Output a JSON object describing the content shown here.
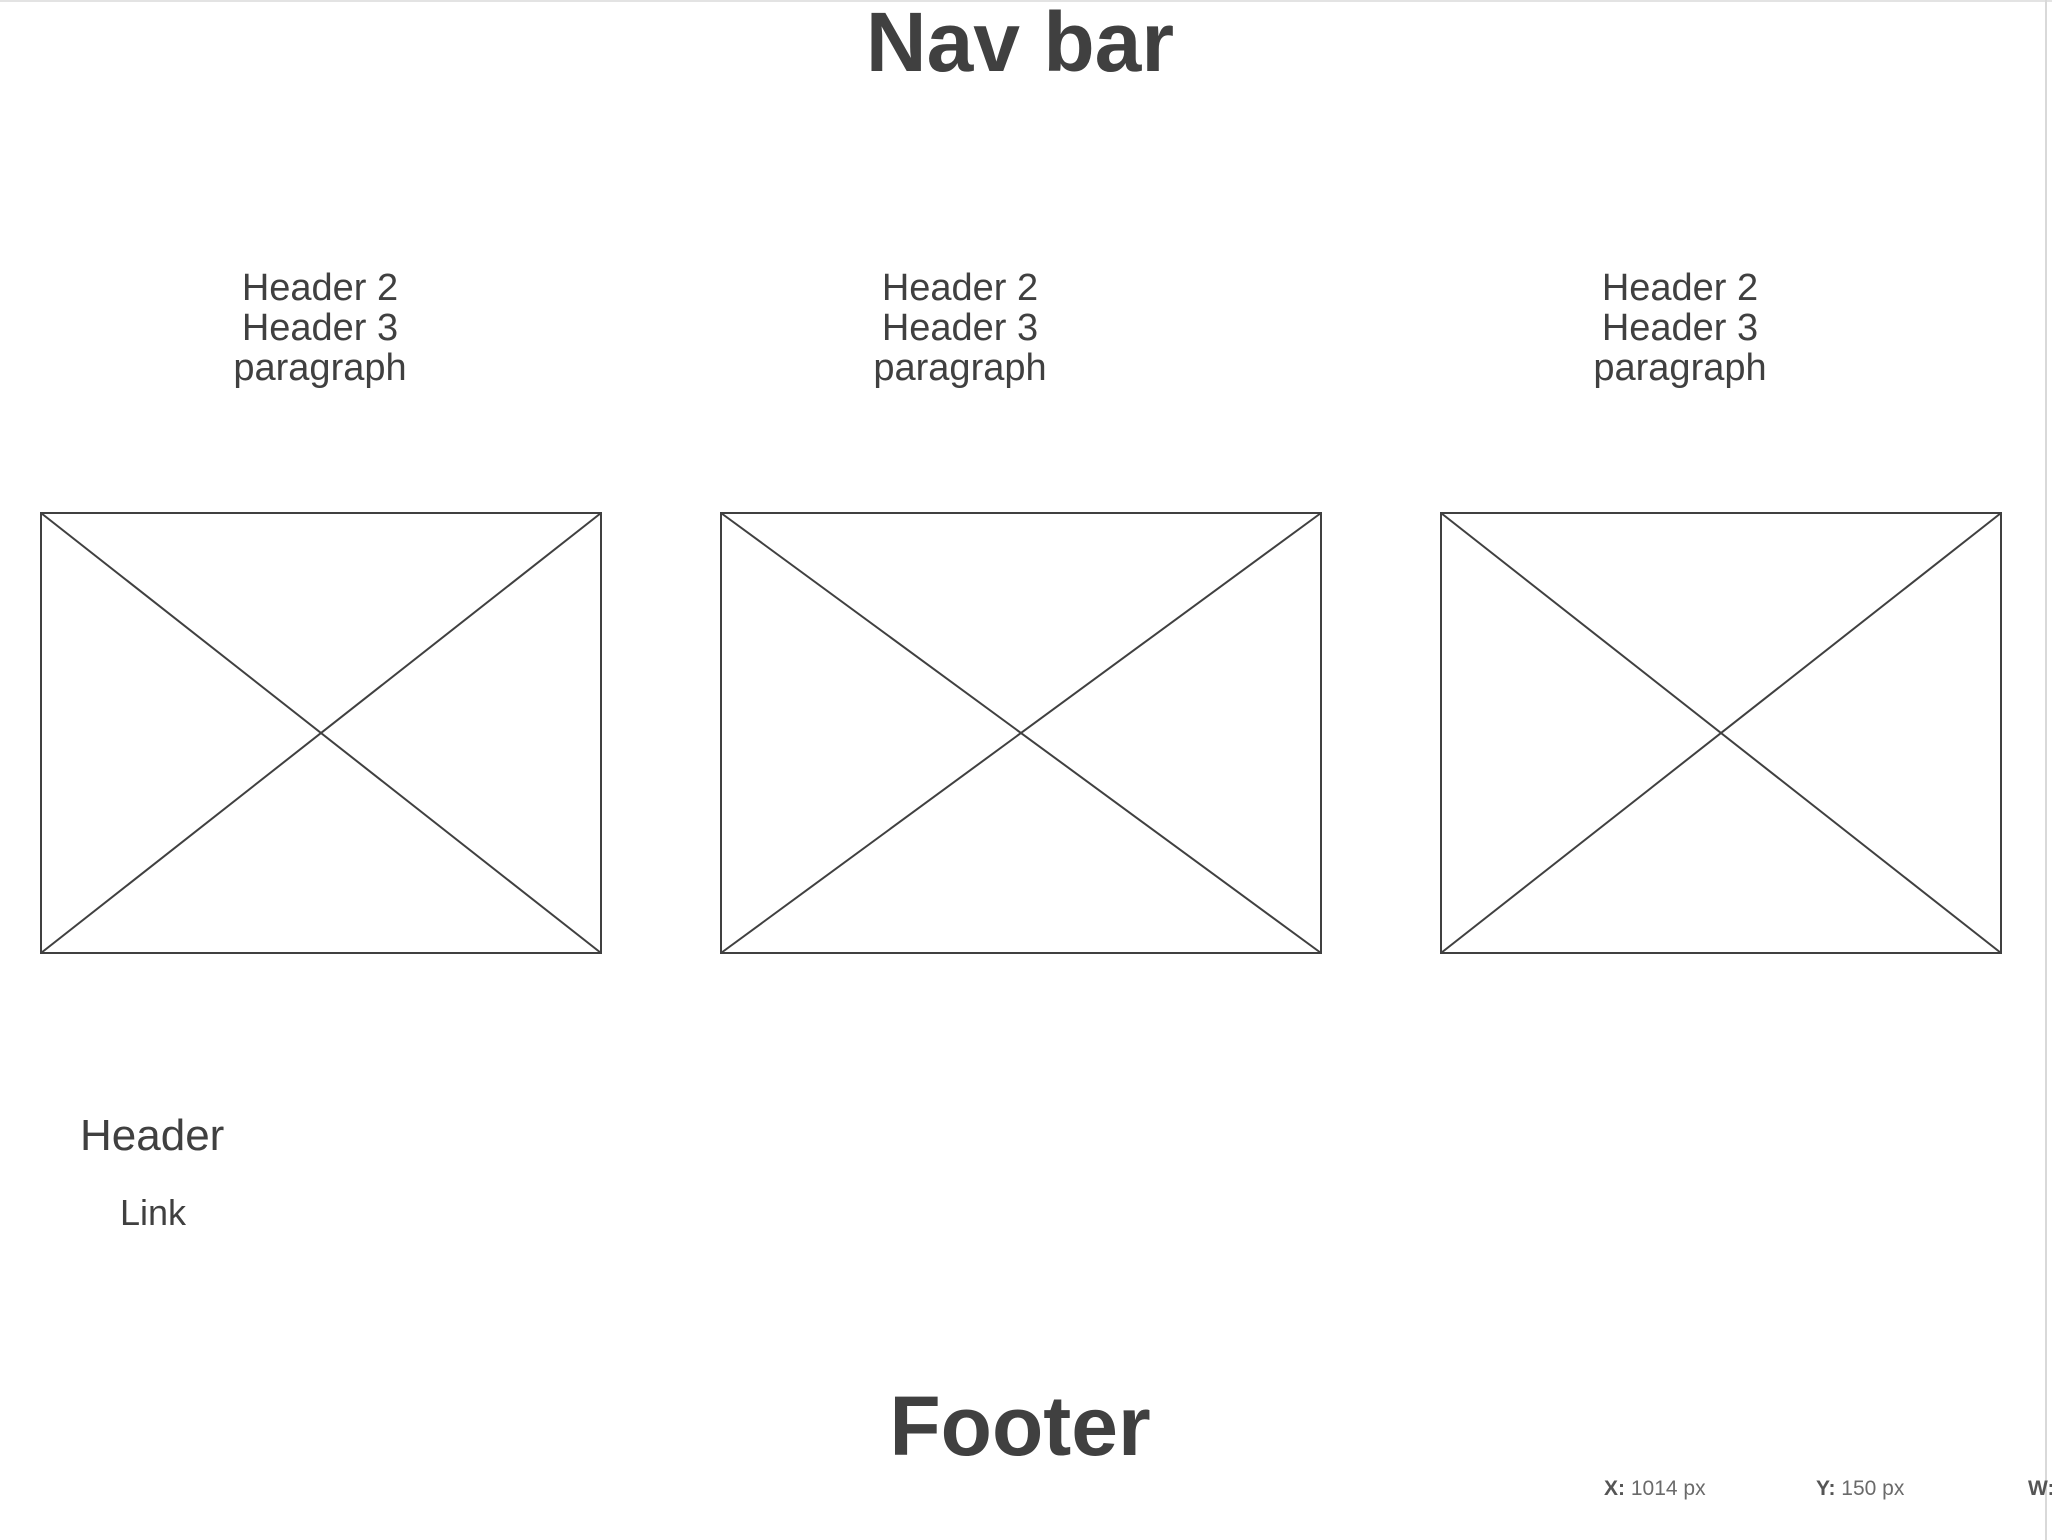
{
  "nav": {
    "title": "Nav bar"
  },
  "columns": [
    {
      "header2": "Header 2",
      "header3": "Header 3",
      "paragraph": "paragraph"
    },
    {
      "header2": "Header 2",
      "header3": "Header 3",
      "paragraph": "paragraph"
    },
    {
      "header2": "Header 2",
      "header3": "Header 3",
      "paragraph": "paragraph"
    }
  ],
  "footer": {
    "header": "Header",
    "link": "Link",
    "title": "Footer"
  },
  "coordinates": {
    "x_label": "X:",
    "x_value": "1014 px",
    "y_label": "Y:",
    "y_value": "150 px",
    "w_label": "W:"
  },
  "colors": {
    "text": "#404040",
    "stroke": "#404040",
    "background": "#ffffff"
  }
}
